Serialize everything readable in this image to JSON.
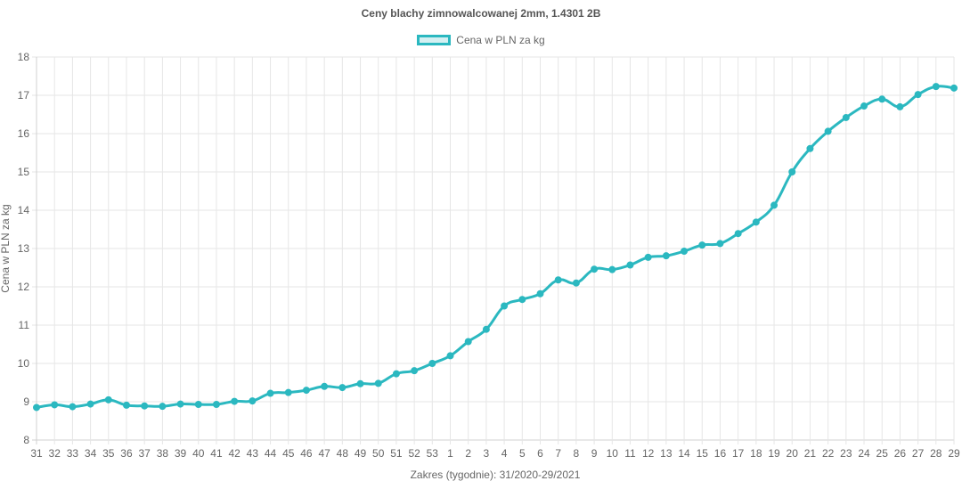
{
  "chart_data": {
    "type": "line",
    "title": "Ceny blachy zimnowalcowanej 2mm, 1.4301 2B",
    "xlabel": "Zakres (tygodnie): 31/2020-29/2021",
    "ylabel": "Cena w PLN za kg",
    "ylim": [
      8,
      18
    ],
    "yticks": [
      8,
      9,
      10,
      11,
      12,
      13,
      14,
      15,
      16,
      17,
      18
    ],
    "grid": true,
    "legend_position": "top",
    "categories": [
      "31",
      "32",
      "33",
      "34",
      "35",
      "36",
      "37",
      "38",
      "39",
      "40",
      "41",
      "42",
      "43",
      "44",
      "45",
      "46",
      "47",
      "48",
      "49",
      "50",
      "51",
      "52",
      "53",
      "1",
      "2",
      "3",
      "4",
      "5",
      "6",
      "7",
      "8",
      "9",
      "10",
      "11",
      "12",
      "13",
      "14",
      "15",
      "16",
      "17",
      "18",
      "19",
      "20",
      "21",
      "22",
      "23",
      "24",
      "25",
      "26",
      "27",
      "28",
      "29"
    ],
    "series": [
      {
        "name": "Cena w PLN za kg",
        "color": "#2bb8c0",
        "values": [
          8.85,
          8.92,
          8.87,
          8.94,
          9.05,
          8.91,
          8.89,
          8.88,
          8.94,
          8.93,
          8.93,
          9.01,
          9.02,
          9.22,
          9.24,
          9.3,
          9.4,
          9.37,
          9.47,
          9.48,
          9.73,
          9.81,
          10.0,
          10.2,
          10.57,
          10.89,
          11.5,
          11.67,
          11.82,
          12.18,
          12.1,
          12.46,
          12.45,
          12.57,
          12.77,
          12.81,
          12.93,
          13.09,
          13.13,
          13.39,
          13.69,
          14.13,
          15.0,
          15.61,
          16.06,
          16.42,
          16.72,
          16.9,
          16.7,
          17.02,
          17.23,
          17.19
        ]
      }
    ]
  }
}
